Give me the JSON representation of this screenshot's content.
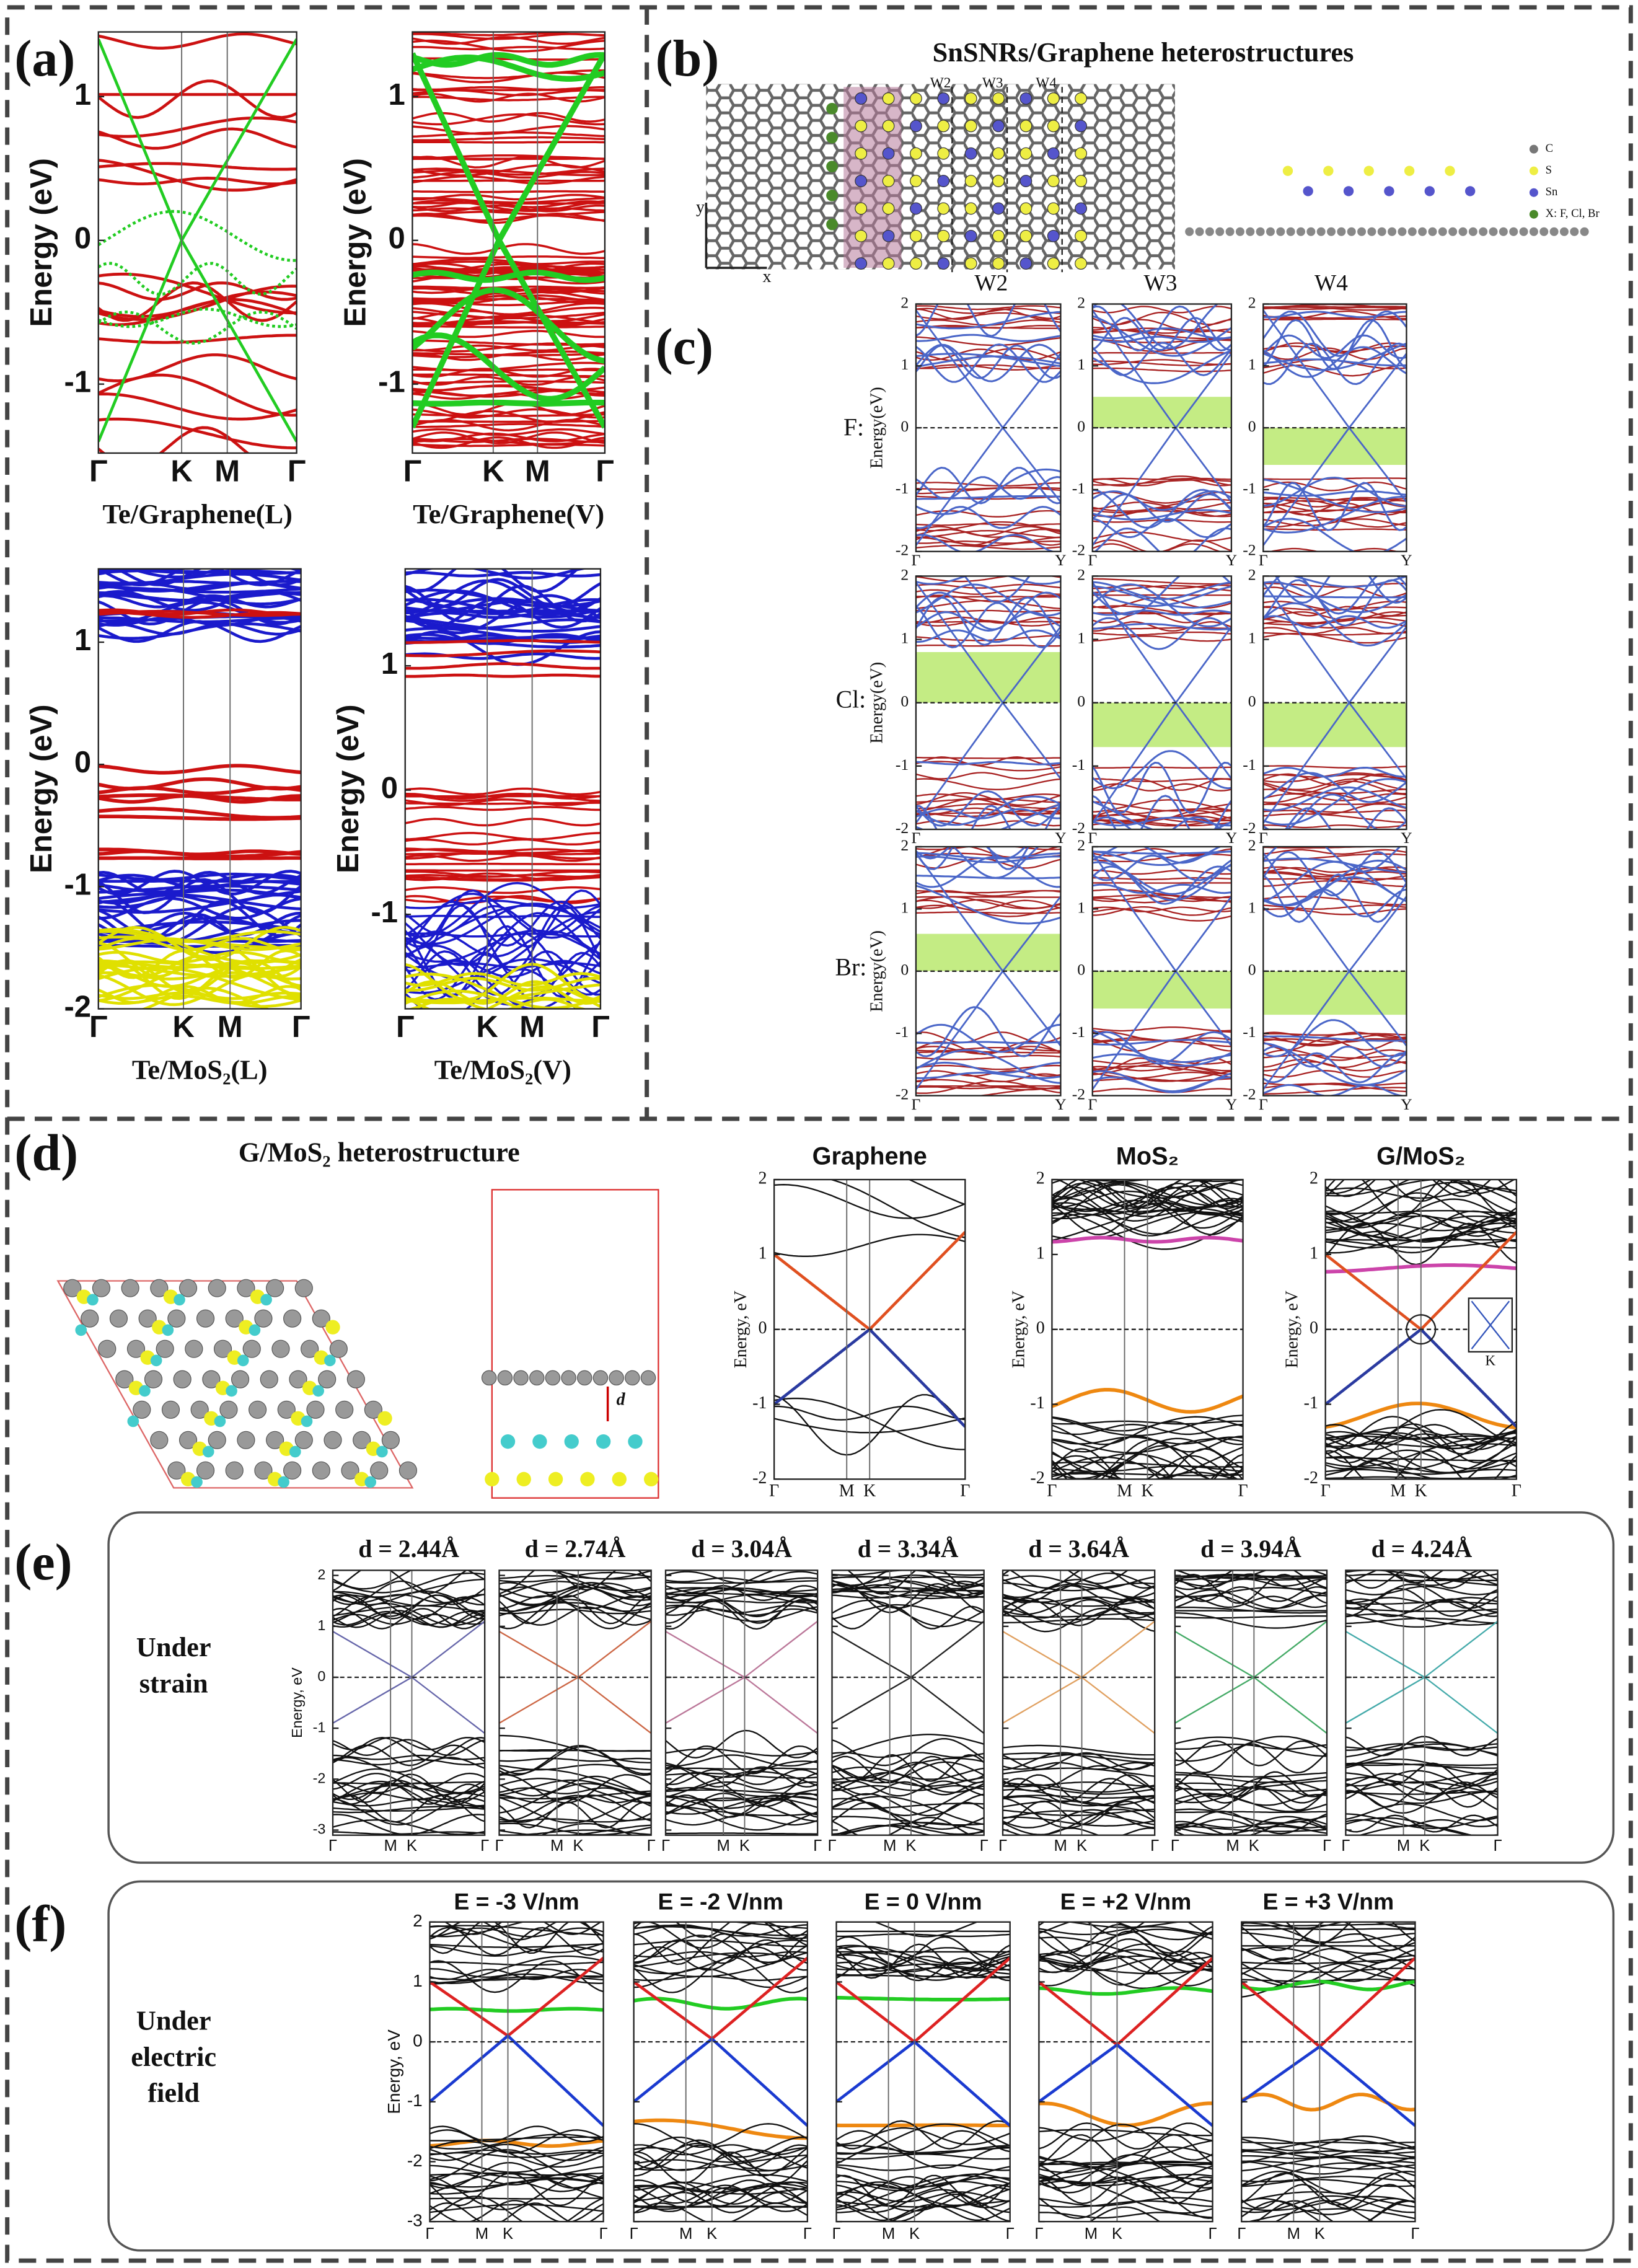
{
  "panel_a": {
    "label": "(a)",
    "ylabel": "Energy (eV)",
    "xticks": [
      "Γ",
      "K",
      "M",
      "Γ"
    ],
    "plots": [
      {
        "caption": "Te/Graphene(L)",
        "ylim": [
          -1.48,
          1.45
        ],
        "yticks": [
          1,
          0,
          -1
        ]
      },
      {
        "caption": "Te/Graphene(V)",
        "ylim": [
          -1.48,
          1.45
        ],
        "yticks": [
          1,
          0,
          -1
        ]
      },
      {
        "caption": "Te/MoS₂(L)",
        "ylim": [
          -2,
          1.6
        ],
        "yticks": [
          1,
          0,
          -1,
          -2
        ]
      },
      {
        "caption": "Te/MoS₂(V)",
        "ylim": [
          -1.76,
          1.78
        ],
        "yticks": [
          1,
          0,
          -1
        ]
      }
    ]
  },
  "panel_b": {
    "label": "(b)",
    "title": "SnSNRs/Graphene heterostructures",
    "widths_top": [
      "W2",
      "W3",
      "W4"
    ],
    "widths_bottom": [
      "W2",
      "W3",
      "W4"
    ],
    "axes": [
      "y",
      "x"
    ],
    "legend": [
      "C",
      "S",
      "Sn",
      "X: F, Cl, Br"
    ]
  },
  "panel_c": {
    "label": "(c)",
    "ylabel": "Energy(eV)",
    "ylim": [
      -2,
      2
    ],
    "yticks": [
      2,
      1,
      0,
      -1,
      -2
    ],
    "xticks": [
      "Γ",
      "Y"
    ],
    "rows": [
      "F:",
      "Cl:",
      "Br:"
    ]
  },
  "panel_d": {
    "label": "(d)",
    "title": "G/MoS₂ heterostructure",
    "distance_label": "d",
    "ylabel": "Energy, eV",
    "ylim": [
      -2,
      2
    ],
    "yticks": [
      2,
      1,
      0,
      -1,
      -2
    ],
    "xticks": [
      "Γ",
      "M",
      "K",
      "Γ"
    ],
    "plots": [
      "Graphene",
      "MoS₂",
      "G/MoS₂"
    ],
    "inset_label": "K"
  },
  "panel_e": {
    "label": "(e)",
    "condition": [
      "Under",
      "strain"
    ],
    "ylabel": "Energy, eV",
    "ylim": [
      -3.1,
      2.1
    ],
    "yticks": [
      2,
      1,
      0,
      -1,
      -2,
      -3
    ],
    "xticks": [
      "Γ",
      "M",
      "K",
      "Γ"
    ],
    "plots": [
      "d = 2.44Å",
      "d = 2.74Å",
      "d = 3.04Å",
      "d = 3.34Å",
      "d = 3.64Å",
      "d = 3.94Å",
      "d = 4.24Å"
    ]
  },
  "panel_f": {
    "label": "(f)",
    "condition": [
      "Under",
      "electric",
      "field"
    ],
    "ylabel": "Energy, eV",
    "ylim": [
      -3,
      2
    ],
    "yticks": [
      2,
      1,
      0,
      -1,
      -2,
      -3
    ],
    "xticks": [
      "Γ",
      "M",
      "K",
      "Γ"
    ],
    "plots": [
      "E = -3 V/nm",
      "E = -2 V/nm",
      "E = 0 V/nm",
      "E = +2 V/nm",
      "E = +3 V/nm"
    ]
  }
}
